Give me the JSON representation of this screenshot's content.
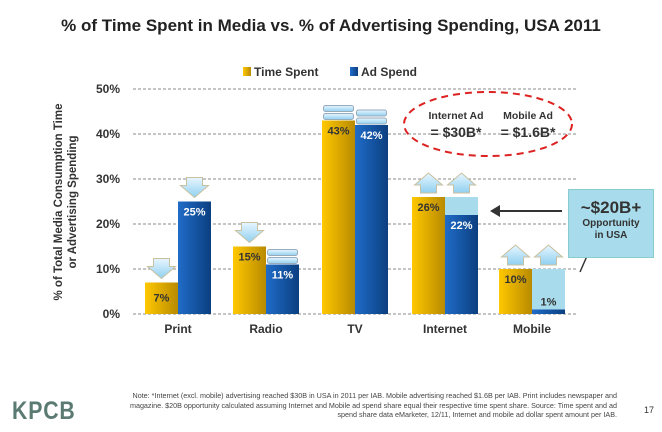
{
  "chart_data": {
    "type": "bar",
    "title": "% of Time Spent in Media vs. % of Advertising Spending, USA 2011",
    "ylabel": "% of Total Media Consumption Time or Advertising Spending",
    "ylim": [
      0,
      50
    ],
    "yticks": [
      "0%",
      "10%",
      "20%",
      "30%",
      "40%",
      "50%"
    ],
    "grid": true,
    "legend_position": "top",
    "categories": [
      "Print",
      "Radio",
      "TV",
      "Internet",
      "Mobile"
    ],
    "series": [
      {
        "name": "Time Spent",
        "values": [
          7,
          15,
          43,
          26,
          10
        ],
        "labels": [
          "7%",
          "15%",
          "43%",
          "26%",
          "10%"
        ],
        "color": "#f0b400"
      },
      {
        "name": "Ad Spend",
        "values": [
          25,
          11,
          42,
          22,
          1
        ],
        "labels": [
          "25%",
          "11%",
          "42%",
          "22%",
          "1%"
        ],
        "color": "#1a5fb4"
      }
    ],
    "trend_icons": {
      "time_spent": [
        "down-arrow",
        "down-arrow",
        "equal",
        "up-arrow",
        "up-arrow"
      ],
      "ad_spend": [
        "down-arrow",
        "equal",
        "equal",
        "up-arrow",
        "up-arrow"
      ]
    },
    "opportunity_fill_color": "#a8dcec",
    "callout": {
      "internet_title": "Internet Ad",
      "internet_value": "= $30B*",
      "mobile_title": "Mobile Ad",
      "mobile_value": "= $1.6B*"
    },
    "opportunity": {
      "value": "~$20B+",
      "line1": "Opportunity",
      "line2": "in USA"
    }
  },
  "note": "Note: *Internet (excl. mobile) advertising reached $30B in USA in 2011 per IAB. Mobile advertising reached $1.6B per IAB. Print includes newspaper and magazine. $20B opportunity calculated assuming Internet and Mobile ad spend share equal their respective time spent share. Source: Time spent and ad spend share data eMarketer, 12/11, Internet and mobile ad dollar spent amount per IAB.",
  "logo": "KPCB",
  "page_number": "17"
}
